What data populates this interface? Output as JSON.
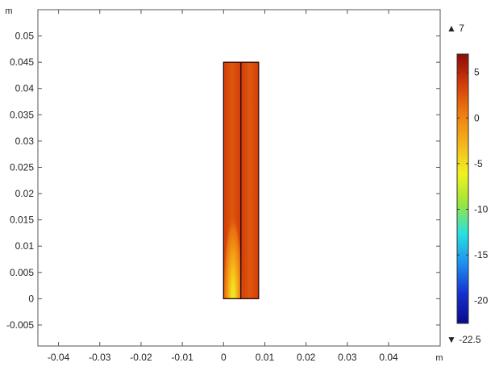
{
  "chart_data": {
    "type": "heatmap",
    "title": "",
    "xaxis": {
      "unit_label": "m",
      "range": [
        -0.045,
        0.0525
      ],
      "ticks": [
        -0.04,
        -0.03,
        -0.02,
        -0.01,
        0,
        0.01,
        0.02,
        0.03,
        0.04
      ],
      "tick_labels": [
        "-0.04",
        "-0.03",
        "-0.02",
        "-0.01",
        "0",
        "0.01",
        "0.02",
        "0.03",
        "0.04"
      ]
    },
    "yaxis": {
      "unit_label": "m",
      "range": [
        -0.009,
        0.055
      ],
      "ticks": [
        -0.005,
        0,
        0.005,
        0.01,
        0.015,
        0.02,
        0.025,
        0.03,
        0.035,
        0.04,
        0.045,
        0.05
      ],
      "tick_labels": [
        "-0.005",
        "0",
        "0.005",
        "0.01",
        "0.015",
        "0.02",
        "0.025",
        "0.03",
        "0.035",
        "0.04",
        "0.045",
        "0.05"
      ]
    },
    "domains": [
      {
        "x": [
          0,
          0.0042
        ],
        "y": [
          0,
          0.045
        ]
      },
      {
        "x": [
          0.0042,
          0.0085
        ],
        "y": [
          0,
          0.045
        ]
      }
    ],
    "field": {
      "background_value": 2.5,
      "hotspot": {
        "x_center": 0.0023,
        "y_base": 0,
        "base_value": -7,
        "decay_height": 0.016,
        "half_width": 0.0024
      }
    },
    "colorbar": {
      "min": -22.5,
      "max": 7,
      "min_label": "▼ -22.5",
      "max_label": "▲ 7",
      "ticks": [
        5,
        0,
        -5,
        -10,
        -15,
        -20
      ],
      "tick_labels": [
        "5",
        "0",
        "-5",
        "-10",
        "-15",
        "-20"
      ],
      "colormap": [
        "#0a0a8c",
        "#1530d0",
        "#1e8ff0",
        "#28e0e0",
        "#9ae63c",
        "#f2f21e",
        "#f5b41c",
        "#ee7d10",
        "#d23c0a",
        "#8c0a0a"
      ]
    },
    "grid": false,
    "legend": "colorbar-right"
  }
}
